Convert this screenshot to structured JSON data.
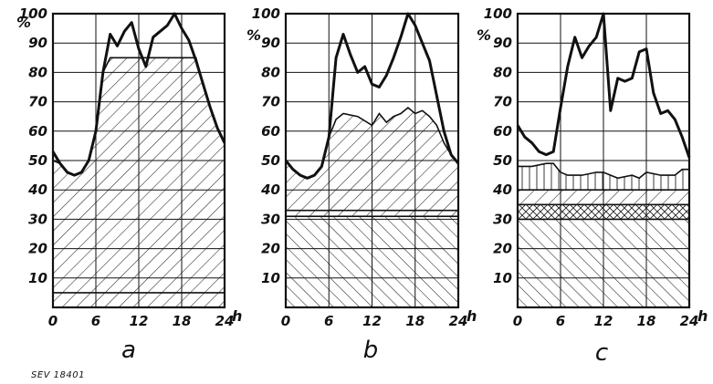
{
  "figure": {
    "ylabel": "%",
    "xlabel": "h",
    "note": "SEV 18401"
  },
  "colors": {
    "ink": "#111111",
    "paper": "#ffffff"
  },
  "chart_data": [
    {
      "type": "area",
      "panel_label": "a",
      "xlim": [
        0,
        24
      ],
      "ylim": [
        0,
        100
      ],
      "xticks": [
        "0",
        "6",
        "12",
        "18",
        "24"
      ],
      "yticks": [
        "10",
        "20",
        "30",
        "40",
        "50",
        "60",
        "70",
        "80",
        "90",
        "100"
      ],
      "grid": true,
      "series": [
        {
          "role": "load-curve",
          "x": [
            0,
            1,
            2,
            3,
            4,
            5,
            6,
            7,
            8,
            9,
            10,
            11,
            12,
            13,
            14,
            15,
            16,
            17,
            18,
            19,
            20,
            21,
            22,
            23,
            24
          ],
          "y": [
            53,
            49,
            46,
            45,
            46,
            50,
            60,
            80,
            93,
            89,
            94,
            97,
            88,
            82,
            92,
            94,
            96,
            100,
            95,
            91,
            84,
            76,
            68,
            61,
            56
          ]
        }
      ],
      "shaded_bands": [
        {
          "lower": {
            "x": [
              0,
              24
            ],
            "y": [
              0,
              0
            ]
          },
          "upper": {
            "x": [
              0,
              24
            ],
            "y": [
              5,
              5
            ]
          },
          "hatch": "forward"
        },
        {
          "lower": {
            "x": [
              0,
              24
            ],
            "y": [
              5,
              5
            ]
          },
          "upper": {
            "x": [
              0,
              1,
              2,
              3,
              4,
              5,
              6,
              7,
              8,
              20,
              21,
              22,
              23,
              24
            ],
            "y": [
              50,
              49,
              46,
              45,
              46,
              50,
              60,
              80,
              85,
              85,
              76,
              68,
              61,
              56
            ]
          },
          "hatch": "forward"
        }
      ]
    },
    {
      "type": "area",
      "panel_label": "b",
      "xlim": [
        0,
        24
      ],
      "ylim": [
        0,
        100
      ],
      "xticks": [
        "0",
        "6",
        "12",
        "18",
        "24"
      ],
      "yticks": [
        "10",
        "20",
        "30",
        "40",
        "50",
        "60",
        "70",
        "80",
        "90",
        "100"
      ],
      "grid": true,
      "series": [
        {
          "role": "load-curve",
          "x": [
            0,
            1,
            2,
            3,
            4,
            5,
            6,
            7,
            8,
            9,
            10,
            11,
            12,
            13,
            14,
            15,
            16,
            17,
            18,
            19,
            20,
            21,
            22,
            23,
            24
          ],
          "y": [
            50,
            47,
            45,
            44,
            45,
            48,
            58,
            85,
            93,
            86,
            80,
            82,
            76,
            75,
            79,
            85,
            92,
            100,
            96,
            90,
            84,
            72,
            60,
            52,
            49
          ]
        }
      ],
      "shaded_bands": [
        {
          "lower": {
            "x": [
              0,
              24
            ],
            "y": [
              0,
              0
            ]
          },
          "upper": {
            "x": [
              0,
              24
            ],
            "y": [
              31,
              31
            ]
          },
          "hatch": "back"
        },
        {
          "lower": {
            "x": [
              0,
              24
            ],
            "y": [
              31,
              31
            ]
          },
          "upper": {
            "x": [
              0,
              24
            ],
            "y": [
              33,
              33
            ]
          },
          "hatch": "forward"
        },
        {
          "lower": {
            "x": [
              0,
              24
            ],
            "y": [
              33,
              33
            ]
          },
          "upper": {
            "x": [
              0,
              1,
              2,
              3,
              4,
              5,
              6,
              7,
              8,
              10,
              12,
              13,
              14,
              15,
              16,
              17,
              18,
              19,
              20,
              21,
              22,
              23,
              24
            ],
            "y": [
              50,
              47,
              45,
              44,
              45,
              48,
              58,
              64,
              66,
              65,
              62,
              66,
              63,
              65,
              66,
              68,
              66,
              67,
              65,
              62,
              56,
              52,
              49
            ]
          },
          "hatch": "forward"
        }
      ]
    },
    {
      "type": "area",
      "panel_label": "c",
      "xlim": [
        0,
        24
      ],
      "ylim": [
        0,
        100
      ],
      "xticks": [
        "0",
        "6",
        "12",
        "18",
        "24"
      ],
      "yticks": [
        "10",
        "20",
        "30",
        "40",
        "50",
        "60",
        "70",
        "80",
        "90",
        "100"
      ],
      "grid": true,
      "series": [
        {
          "role": "load-curve",
          "x": [
            0,
            1,
            2,
            3,
            4,
            5,
            6,
            7,
            8,
            9,
            10,
            11,
            12,
            13,
            14,
            15,
            16,
            17,
            18,
            19,
            20,
            21,
            22,
            23,
            24
          ],
          "y": [
            62,
            58,
            56,
            53,
            52,
            53,
            68,
            82,
            92,
            85,
            89,
            92,
            100,
            67,
            78,
            77,
            78,
            87,
            88,
            73,
            66,
            67,
            64,
            58,
            51
          ]
        }
      ],
      "shaded_bands": [
        {
          "lower": {
            "x": [
              0,
              24
            ],
            "y": [
              0,
              0
            ]
          },
          "upper": {
            "x": [
              0,
              24
            ],
            "y": [
              30,
              30
            ]
          },
          "hatch": "back"
        },
        {
          "lower": {
            "x": [
              0,
              24
            ],
            "y": [
              30,
              30
            ]
          },
          "upper": {
            "x": [
              0,
              24
            ],
            "y": [
              35,
              35
            ]
          },
          "hatch": "cross"
        },
        {
          "lower": {
            "x": [
              0,
              24
            ],
            "y": [
              35,
              35
            ]
          },
          "upper": {
            "x": [
              0,
              24
            ],
            "y": [
              40,
              40
            ]
          },
          "hatch": "forward"
        },
        {
          "lower": {
            "x": [
              0,
              24
            ],
            "y": [
              40,
              40
            ]
          },
          "upper": {
            "x": [
              0,
              2,
              4,
              5,
              6,
              7,
              9,
              11,
              12,
              13,
              14,
              16,
              17,
              18,
              20,
              22,
              23,
              24
            ],
            "y": [
              48,
              48,
              49,
              49,
              46,
              45,
              45,
              46,
              46,
              45,
              44,
              45,
              44,
              46,
              45,
              45,
              47,
              47
            ]
          },
          "hatch": "vertical"
        }
      ]
    }
  ]
}
